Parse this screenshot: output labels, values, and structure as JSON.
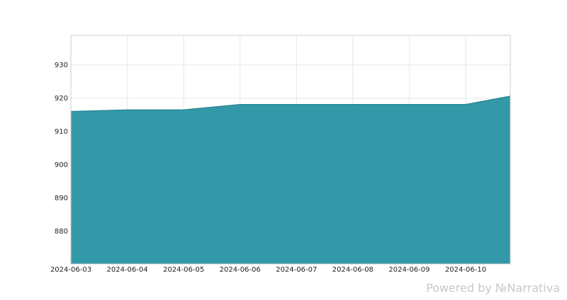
{
  "chart_data": {
    "type": "area",
    "x": [
      "2024-06-03",
      "2024-06-04",
      "2024-06-05",
      "2024-06-06",
      "2024-06-07",
      "2024-06-08",
      "2024-06-09",
      "2024-06-10",
      "2024-06-10T19:00"
    ],
    "values": [
      916.0,
      916.5,
      916.5,
      918.1,
      918.1,
      918.1,
      918.1,
      918.1,
      920.6
    ],
    "color": "#3399a8",
    "line_color": "#2a8796",
    "xlim": [
      "2024-06-03",
      "2024-06-10T19:00"
    ],
    "xticks": [
      "2024-06-03",
      "2024-06-04",
      "2024-06-05",
      "2024-06-06",
      "2024-06-07",
      "2024-06-08",
      "2024-06-09",
      "2024-06-10"
    ],
    "ylim": [
      870.2,
      938.9
    ],
    "yticks": [
      880,
      890,
      900,
      910,
      920,
      930
    ],
    "grid": true,
    "watermark": "Powered by №Narrativa"
  }
}
